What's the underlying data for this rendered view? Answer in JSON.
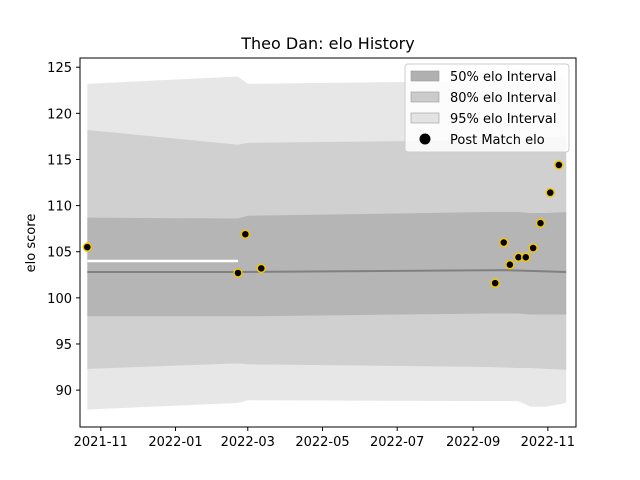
{
  "chart_data": {
    "type": "line",
    "title": "Theo Dan: elo History",
    "xlabel": "",
    "ylabel": "elo score",
    "xlim": [
      "2021-10-15",
      "2022-11-24"
    ],
    "ylim": [
      86,
      126
    ],
    "x_ticks": [
      "2021-11-01",
      "2022-01-01",
      "2022-03-01",
      "2022-05-01",
      "2022-07-01",
      "2022-09-01",
      "2022-11-01"
    ],
    "x_tick_labels": [
      "2021-11",
      "2022-01",
      "2022-03",
      "2022-05",
      "2022-07",
      "2022-09",
      "2022-11"
    ],
    "y_ticks": [
      90,
      95,
      100,
      105,
      110,
      115,
      120,
      125
    ],
    "y_tick_labels": [
      "90",
      "95",
      "100",
      "105",
      "110",
      "115",
      "120",
      "125"
    ],
    "grid": false,
    "legend_position": "top-right",
    "legend": [
      {
        "label": "50% elo Interval",
        "kind": "patch",
        "color": "#b0b0b0"
      },
      {
        "label": "80% elo Interval",
        "kind": "patch",
        "color": "#cbcbcb"
      },
      {
        "label": "95% elo Interval",
        "kind": "patch",
        "color": "#e3e3e3"
      },
      {
        "label": "Post Match elo",
        "kind": "marker",
        "color": "#000000"
      }
    ],
    "mean_line": {
      "color": "#808080",
      "points": [
        [
          "2021-10-21",
          102.8
        ],
        [
          "2022-02-21",
          102.8
        ],
        [
          "2022-09-29",
          103.0
        ],
        [
          "2022-11-16",
          102.8
        ]
      ]
    },
    "intervals": [
      {
        "name": "95%",
        "color": "#e3e3e3",
        "x": [
          "2021-10-21",
          "2022-02-21",
          "2022-02-21",
          "2022-02-21",
          "2022-03-01",
          "2022-09-14",
          "2022-10-08",
          "2022-10-18",
          "2022-10-30",
          "2022-11-16"
        ],
        "upper": [
          123.2,
          124.0,
          124.0,
          124.0,
          123.2,
          123.5,
          123.7,
          123.8,
          123.9,
          124.0
        ],
        "lower": [
          87.9,
          88.6,
          88.6,
          88.6,
          88.9,
          88.8,
          88.8,
          88.2,
          88.2,
          88.6
        ]
      },
      {
        "name": "80%",
        "color": "#cbcbcb",
        "x": [
          "2021-10-21",
          "2022-02-21",
          "2022-02-21",
          "2022-02-21",
          "2022-03-01",
          "2022-09-14",
          "2022-10-08",
          "2022-10-18",
          "2022-10-30",
          "2022-11-16"
        ],
        "upper": [
          118.2,
          116.6,
          116.6,
          116.6,
          116.8,
          117.1,
          117.2,
          117.3,
          117.4,
          117.5
        ],
        "lower": [
          92.3,
          92.9,
          92.9,
          92.9,
          92.8,
          92.5,
          92.4,
          92.4,
          92.3,
          92.2
        ]
      },
      {
        "name": "50%",
        "color": "#b0b0b0",
        "x": [
          "2021-10-21",
          "2022-02-21",
          "2022-02-21",
          "2022-02-21",
          "2022-03-01",
          "2022-09-14",
          "2022-10-08",
          "2022-10-18",
          "2022-10-30",
          "2022-11-16"
        ],
        "upper": [
          108.7,
          108.6,
          108.6,
          108.6,
          108.9,
          109.3,
          109.3,
          109.2,
          109.2,
          109.3
        ],
        "lower": [
          98.0,
          98.0,
          98.0,
          98.0,
          98.0,
          98.3,
          98.3,
          98.2,
          98.2,
          98.2
        ]
      }
    ],
    "gaps": [
      {
        "x": [
          "2021-10-21",
          "2022-02-21"
        ],
        "y": 104.0
      }
    ],
    "points": [
      {
        "x": "2021-10-21",
        "y": 105.5
      },
      {
        "x": "2022-02-21",
        "y": 102.7
      },
      {
        "x": "2022-02-27",
        "y": 106.9
      },
      {
        "x": "2022-03-12",
        "y": 103.2
      },
      {
        "x": "2022-09-19",
        "y": 101.6
      },
      {
        "x": "2022-09-26",
        "y": 106.0
      },
      {
        "x": "2022-10-01",
        "y": 103.6
      },
      {
        "x": "2022-10-08",
        "y": 104.4
      },
      {
        "x": "2022-10-14",
        "y": 104.4
      },
      {
        "x": "2022-10-20",
        "y": 105.4
      },
      {
        "x": "2022-10-26",
        "y": 108.1
      },
      {
        "x": "2022-11-03",
        "y": 111.4
      },
      {
        "x": "2022-11-10",
        "y": 114.4
      }
    ],
    "point_colors": {
      "fill": "#000000",
      "edge": "#f5c400"
    }
  }
}
